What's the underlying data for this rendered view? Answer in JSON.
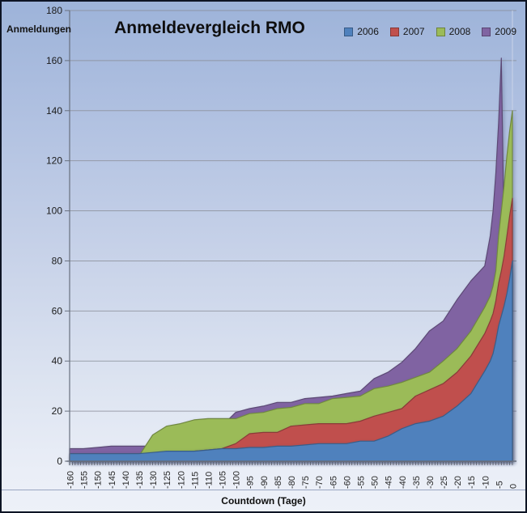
{
  "chart": {
    "title": "Anmeldevergleich RMO",
    "y_axis_label": "Anmeldungen",
    "x_axis_label": "Countdown (Tage)"
  },
  "chart_data": {
    "type": "area",
    "mode": "overlapping",
    "title": "Anmeldevergleich RMO",
    "xlabel": "Countdown (Tage)",
    "ylabel": "Anmeldungen",
    "xlim": [
      -160,
      0
    ],
    "ylim": [
      0,
      180
    ],
    "grid": "horizontal",
    "legend_position": "top-right",
    "y_ticks": [
      0,
      20,
      40,
      60,
      80,
      100,
      120,
      140,
      160,
      180
    ],
    "x_tick_labels": [
      "-160",
      "-155",
      "-150",
      "-145",
      "-140",
      "-135",
      "-130",
      "-125",
      "-120",
      "-115",
      "-110",
      "-105",
      "-100",
      "-95",
      "-90",
      "-85",
      "-80",
      "-75",
      "-70",
      "-65",
      "-60",
      "-55",
      "-50",
      "-45",
      "-40",
      "-35",
      "-30",
      "-25",
      "-20",
      "-15",
      "-10",
      "-5",
      "0"
    ],
    "x": [
      -160,
      -155,
      -150,
      -145,
      -140,
      -135,
      -130,
      -125,
      -120,
      -115,
      -110,
      -105,
      -100,
      -95,
      -90,
      -85,
      -80,
      -75,
      -70,
      -65,
      -60,
      -55,
      -50,
      -45,
      -40,
      -35,
      -30,
      -25,
      -20,
      -15,
      -10,
      -8,
      -7,
      -6,
      -5,
      -4,
      -3,
      -2,
      -1,
      0
    ],
    "series": [
      {
        "name": "2006",
        "color": "#4F81BD",
        "values": [
          3,
          3,
          3,
          3,
          3,
          3,
          3.5,
          4,
          4,
          4,
          4.5,
          5,
          5,
          5.5,
          5.5,
          6,
          6,
          6.5,
          7,
          7,
          7,
          8,
          8,
          10,
          13,
          15,
          16,
          18,
          22,
          27,
          36,
          40,
          43,
          48,
          54,
          58,
          62,
          67,
          73,
          80
        ]
      },
      {
        "name": "2007",
        "color": "#C0504D",
        "values": [
          3,
          3,
          3,
          3,
          3,
          3,
          3,
          3,
          3.5,
          4,
          4.5,
          5,
          7,
          11,
          11.5,
          11.5,
          14,
          14.5,
          15,
          15,
          15,
          16,
          18,
          19.5,
          21,
          26,
          28.5,
          31,
          35.5,
          42,
          51,
          56,
          59,
          64,
          71,
          76,
          82,
          90,
          98,
          105
        ]
      },
      {
        "name": "2008",
        "color": "#9BBB59",
        "values": [
          2,
          2,
          2,
          2,
          2,
          2,
          10.5,
          14,
          15,
          16.5,
          17,
          17,
          17,
          19,
          19.5,
          21,
          21.5,
          23,
          23,
          25,
          25.5,
          26,
          29,
          30,
          31.5,
          33.5,
          35.5,
          40,
          45,
          52,
          61.5,
          66,
          70,
          76,
          90,
          100,
          110,
          122,
          132,
          140
        ]
      },
      {
        "name": "2009",
        "color": "#8064A2",
        "values": [
          5,
          5,
          5.5,
          6,
          6,
          6,
          6,
          6.5,
          7,
          7,
          8,
          14,
          19.5,
          21,
          22,
          23.5,
          23.5,
          25,
          25.5,
          26,
          27,
          28,
          33,
          35.5,
          39.5,
          45,
          52,
          56,
          64.5,
          72,
          78,
          90,
          100,
          115,
          135,
          161,
          90,
          30,
          0,
          0
        ]
      }
    ],
    "draw_order_back_to_front": [
      "2009",
      "2008",
      "2007",
      "2006"
    ]
  }
}
